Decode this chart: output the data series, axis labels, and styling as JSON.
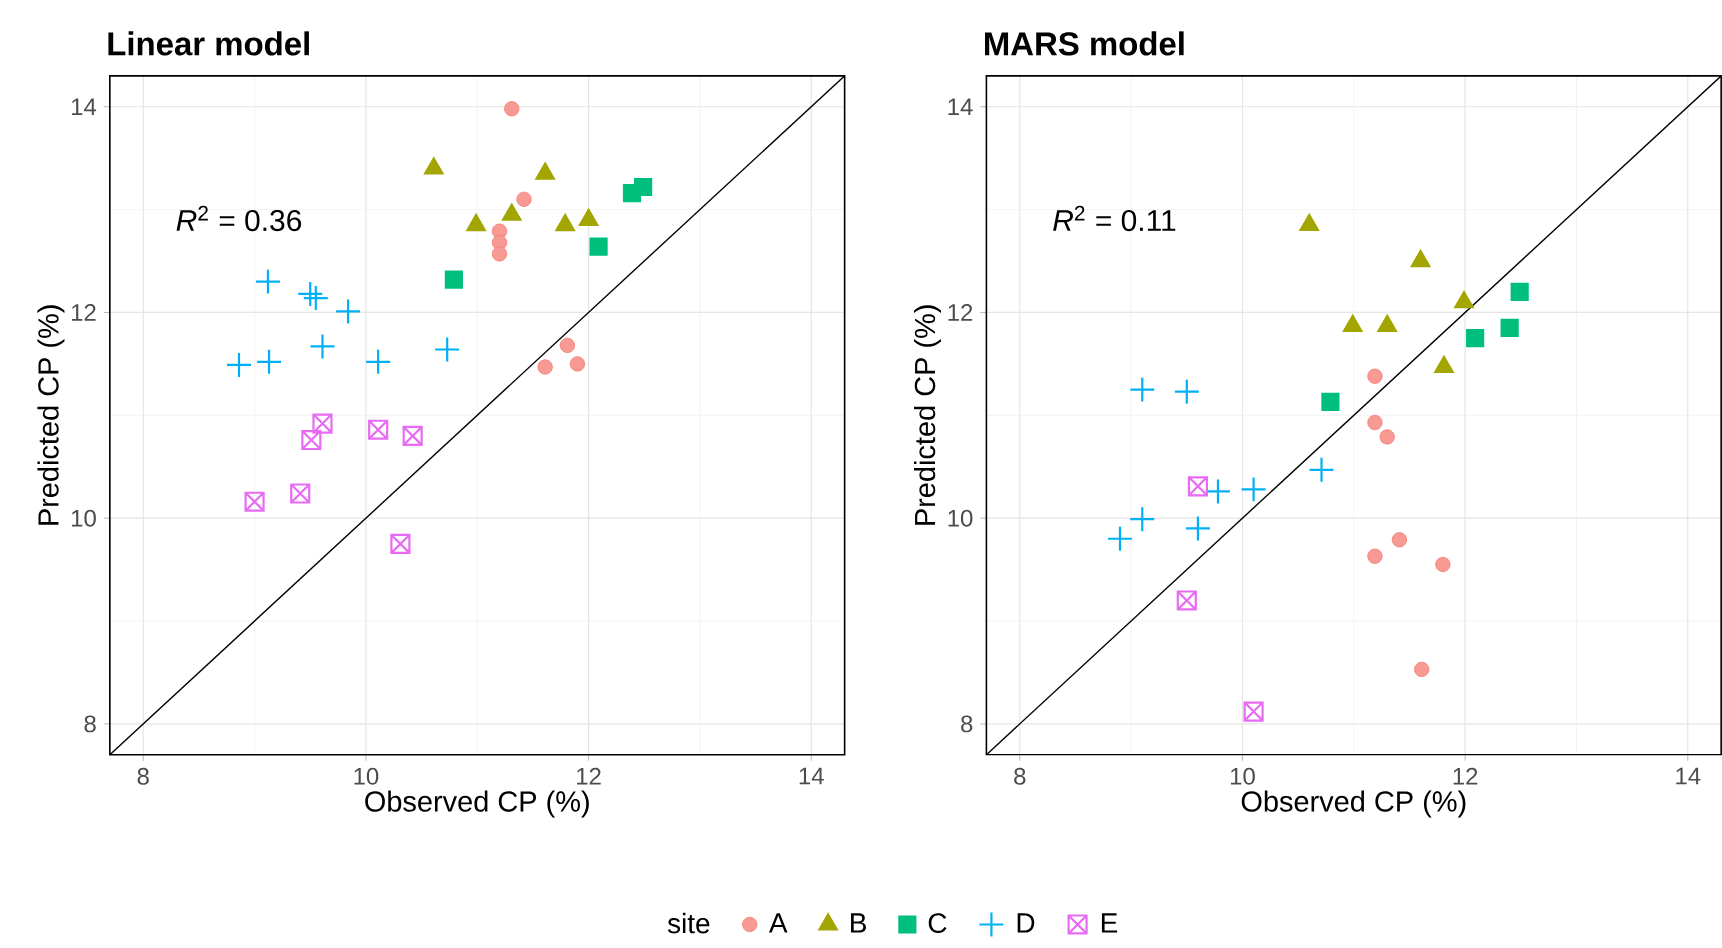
{
  "chart_data": [
    {
      "type": "scatter",
      "title": "Linear model",
      "xlabel": "Observed CP (%)",
      "ylabel": "Predicted CP (%)",
      "xlim": [
        7.7,
        14.3
      ],
      "ylim": [
        7.7,
        14.3
      ],
      "xticks": [
        8,
        10,
        12,
        14
      ],
      "yticks": [
        8,
        10,
        12,
        14
      ],
      "grid": true,
      "legend": "bottom",
      "legend_title": "site",
      "annotations": [
        "*R*$^{2}$ = 0.36"
      ],
      "series": [
        {
          "name": "A",
          "color": "#f8766d",
          "marker": "circle",
          "x": [
            11.31,
            11.42,
            11.2,
            11.2,
            11.2,
            11.61,
            11.81,
            11.9
          ],
          "values": [
            13.98,
            13.1,
            12.79,
            12.68,
            12.57,
            11.47,
            11.68,
            11.5
          ]
        },
        {
          "name": "B",
          "color": "#a3a500",
          "marker": "triangle",
          "x": [
            10.61,
            10.99,
            11.31,
            11.61,
            11.79,
            12.0
          ],
          "values": [
            13.4,
            12.85,
            12.95,
            13.35,
            12.85,
            12.9
          ]
        },
        {
          "name": "C",
          "color": "#00bf7d",
          "marker": "square",
          "x": [
            10.79,
            12.09,
            12.39,
            12.49
          ],
          "values": [
            12.32,
            12.64,
            13.16,
            13.22
          ]
        },
        {
          "name": "D",
          "color": "#00b0f6",
          "marker": "cross",
          "x": [
            8.86,
            9.13,
            9.12,
            9.5,
            9.55,
            9.84,
            9.61,
            10.11,
            10.73
          ],
          "values": [
            11.49,
            11.52,
            12.3,
            12.18,
            12.14,
            12.01,
            11.67,
            11.52,
            11.64
          ]
        },
        {
          "name": "E",
          "color": "#e76bf3",
          "marker": "cross",
          "x": [
            9.0,
            9.41,
            9.51,
            9.61,
            10.11,
            10.42,
            10.31
          ],
          "values": [
            10.16,
            10.24,
            10.76,
            10.92,
            10.86,
            10.8,
            9.75
          ]
        },
        {
          "type": "line",
          "color": "#000000",
          "marker": "none",
          "x": [
            7.7,
            14.3
          ],
          "values": [
            7.7,
            14.3
          ]
        }
      ]
    },
    {
      "type": "scatter",
      "title": "MARS model",
      "xlabel": "Observed CP (%)",
      "ylabel": "Predicted CP (%)",
      "xlim": [
        7.7,
        14.3
      ],
      "ylim": [
        7.7,
        14.3
      ],
      "xticks": [
        8,
        10,
        12,
        14
      ],
      "yticks": [
        8,
        10,
        12,
        14
      ],
      "grid": true,
      "annotations": [
        "*R*$^{2}$ = 0.11"
      ],
      "series": [
        {
          "color": "#f8766d",
          "marker": "circle",
          "x": [
            11.19,
            11.19,
            11.3,
            11.41,
            11.19,
            11.8,
            11.61
          ],
          "values": [
            11.38,
            10.93,
            10.79,
            9.79,
            9.63,
            9.55,
            8.53
          ]
        },
        {
          "color": "#a3a500",
          "marker": "triangle",
          "x": [
            10.6,
            10.99,
            11.3,
            11.6,
            11.99,
            11.81
          ],
          "values": [
            12.85,
            11.87,
            11.87,
            12.5,
            12.1,
            11.47
          ]
        },
        {
          "color": "#00bf7d",
          "marker": "square",
          "x": [
            10.79,
            12.09,
            12.4,
            12.49
          ],
          "values": [
            11.13,
            11.75,
            11.85,
            12.2
          ]
        },
        {
          "color": "#00b0f6",
          "marker": "cross",
          "x": [
            9.1,
            9.5,
            8.9,
            9.1,
            9.6,
            9.78,
            10.1,
            10.71
          ],
          "values": [
            11.25,
            11.23,
            9.8,
            9.99,
            9.9,
            10.26,
            10.28,
            10.47
          ]
        },
        {
          "color": "#e76bf3",
          "marker": "cross",
          "x": [
            9.6,
            9.5,
            10.1
          ],
          "values": [
            10.31,
            9.2,
            8.12
          ]
        },
        {
          "type": "line",
          "color": "#000000",
          "marker": "none",
          "x": [
            7.7,
            14.3
          ],
          "values": [
            7.7,
            14.3
          ]
        }
      ]
    }
  ]
}
